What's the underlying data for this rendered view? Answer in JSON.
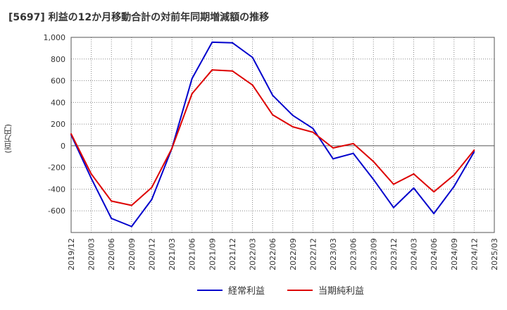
{
  "chart_data": {
    "type": "line",
    "title": "[5697]  利益の12か月移動合計の対前年同期増減額の推移",
    "ylabel": "(百万円)",
    "xlabel": "",
    "ylim": [
      -800,
      1000
    ],
    "yticks": [
      -600,
      -400,
      -200,
      0,
      200,
      400,
      600,
      800,
      1000
    ],
    "ytick_labels": [
      "-600",
      "-400",
      "-200",
      "0",
      "200",
      "400",
      "600",
      "800",
      "1,000"
    ],
    "categories": [
      "2019/12",
      "2020/03",
      "2020/06",
      "2020/09",
      "2020/12",
      "2021/03",
      "2021/06",
      "2021/09",
      "2021/12",
      "2022/03",
      "2022/06",
      "2022/09",
      "2022/12",
      "2023/03",
      "2023/06",
      "2023/09",
      "2023/12",
      "2024/03",
      "2024/06",
      "2024/09",
      "2024/12",
      "2025/03"
    ],
    "grid": true,
    "legend_position": "bottom",
    "series": [
      {
        "name": "経常利益",
        "color": "#0000cc",
        "values": [
          100,
          -300,
          -670,
          -745,
          -495,
          -25,
          620,
          955,
          950,
          815,
          465,
          280,
          160,
          -120,
          -70,
          -310,
          -570,
          -390,
          -625,
          -375,
          -55,
          null
        ]
      },
      {
        "name": "当期純利益",
        "color": "#dd0000",
        "values": [
          110,
          -260,
          -510,
          -550,
          -385,
          -25,
          480,
          700,
          690,
          560,
          285,
          175,
          125,
          -20,
          20,
          -145,
          -355,
          -260,
          -425,
          -270,
          -40,
          null
        ]
      }
    ]
  }
}
